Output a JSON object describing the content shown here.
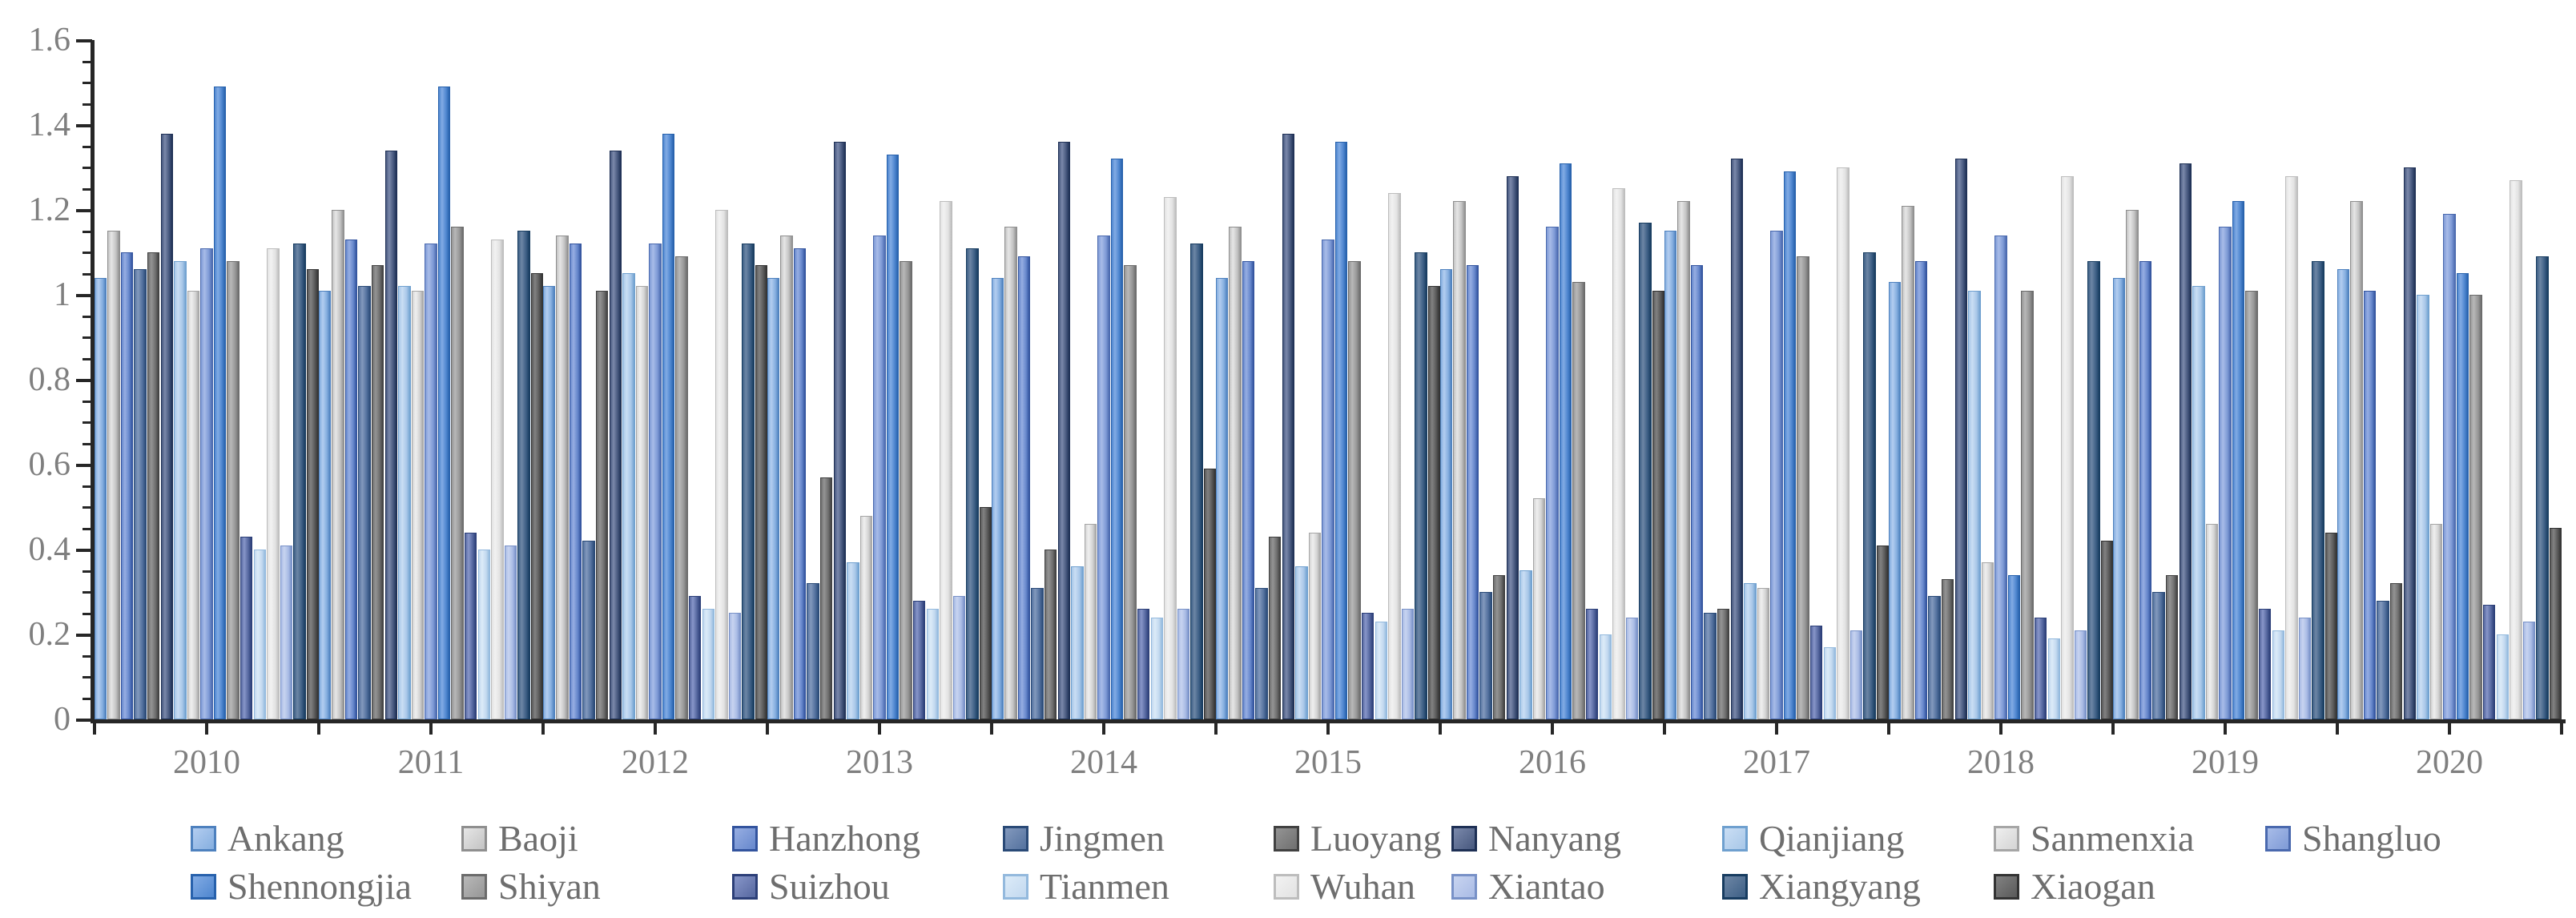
{
  "chart_data": {
    "type": "bar",
    "title": "",
    "xlabel": "",
    "ylabel": "",
    "categories": [
      "2010",
      "2011",
      "2012",
      "2013",
      "2014",
      "2015",
      "2016",
      "2017",
      "2018",
      "2019",
      "2020"
    ],
    "ylim": [
      0,
      1.6
    ],
    "ytick_interval": 0.2,
    "ytick_minor_interval": 0.05,
    "ytick_labels": [
      "0",
      "0.2",
      "0.4",
      "0.6",
      "0.8",
      "1",
      "1.2",
      "1.4",
      "1.6"
    ],
    "grid": false,
    "legend_position": "bottom",
    "legend_rows": [
      [
        "Ankang",
        "Baoji",
        "Hanzhong",
        "Jingmen",
        "Luoyang",
        "Nanyang",
        "Qianjiang",
        "Sanmenxia",
        "Shangluo"
      ],
      [
        "Shennongjia",
        "Shiyan",
        "Suizhou",
        "Tianmen",
        "Wuhan",
        "Xiantao",
        "Xiangyang",
        "Xiaogan"
      ]
    ],
    "axis_color": "#262626",
    "tick_label_color": "#7f7f7f",
    "legend_label_color": "#6e6e6e",
    "series": [
      {
        "name": "Ankang",
        "fill": "#85aedf",
        "light": "#b3cdf0",
        "dark": "#4e81be",
        "values": [
          1.04,
          1.01,
          1.02,
          1.04,
          1.04,
          1.04,
          1.06,
          1.15,
          1.03,
          1.04,
          1.06
        ]
      },
      {
        "name": "Baoji",
        "fill": "#c3c3c3",
        "light": "#e6e6e6",
        "dark": "#8f8f8f",
        "values": [
          1.15,
          1.2,
          1.14,
          1.14,
          1.16,
          1.16,
          1.22,
          1.22,
          1.21,
          1.2,
          1.22
        ]
      },
      {
        "name": "Hanzhong",
        "fill": "#6687cc",
        "light": "#97aee2",
        "dark": "#33549e",
        "values": [
          1.1,
          1.13,
          1.12,
          1.11,
          1.09,
          1.08,
          1.07,
          1.07,
          1.08,
          1.08,
          1.01
        ]
      },
      {
        "name": "Jingmen",
        "fill": "#53719e",
        "light": "#8399bd",
        "dark": "#2a4a77",
        "values": [
          1.06,
          1.02,
          0.42,
          0.32,
          0.31,
          0.31,
          0.3,
          0.25,
          0.29,
          0.3,
          0.28
        ]
      },
      {
        "name": "Luoyang",
        "fill": "#6f6f6f",
        "light": "#949494",
        "dark": "#414141",
        "values": [
          1.1,
          1.07,
          1.01,
          0.57,
          0.4,
          0.43,
          0.34,
          0.26,
          0.33,
          0.34,
          0.32
        ]
      },
      {
        "name": "Nanyang",
        "fill": "#47587e",
        "light": "#7b89ab",
        "dark": "#1e3055",
        "values": [
          1.38,
          1.34,
          1.34,
          1.36,
          1.36,
          1.38,
          1.28,
          1.32,
          1.32,
          1.31,
          1.3
        ]
      },
      {
        "name": "Qianjiang",
        "fill": "#a8c7e8",
        "light": "#cadef4",
        "dark": "#6fa0cf",
        "values": [
          1.08,
          1.02,
          1.05,
          0.37,
          0.36,
          0.36,
          0.35,
          0.32,
          1.01,
          1.02,
          1.0
        ]
      },
      {
        "name": "Sanmenxia",
        "fill": "#d4d4d4",
        "light": "#efefef",
        "dark": "#a6a6a6",
        "values": [
          1.01,
          1.01,
          1.02,
          0.48,
          0.46,
          0.44,
          0.52,
          0.31,
          0.37,
          0.46,
          0.46
        ]
      },
      {
        "name": "Shangluo",
        "fill": "#7e9ad6",
        "light": "#a8bce8",
        "dark": "#4a69ae",
        "values": [
          1.11,
          1.12,
          1.12,
          1.14,
          1.14,
          1.13,
          1.16,
          1.15,
          1.14,
          1.16,
          1.19
        ]
      },
      {
        "name": "Shennongjia",
        "fill": "#4e86cf",
        "light": "#82abe4",
        "dark": "#2761ac",
        "values": [
          1.49,
          1.49,
          1.38,
          1.33,
          1.32,
          1.36,
          1.31,
          1.29,
          0.34,
          1.22,
          1.05
        ]
      },
      {
        "name": "Shiyan",
        "fill": "#969696",
        "light": "#b8b8b8",
        "dark": "#6b6b6b",
        "values": [
          1.08,
          1.16,
          1.09,
          1.08,
          1.07,
          1.08,
          1.03,
          1.09,
          1.01,
          1.01,
          1.0
        ]
      },
      {
        "name": "Suizhou",
        "fill": "#55679f",
        "light": "#8896c9",
        "dark": "#2c3f78",
        "values": [
          0.43,
          0.44,
          0.29,
          0.28,
          0.26,
          0.25,
          0.26,
          0.22,
          0.24,
          0.26,
          0.27
        ]
      },
      {
        "name": "Tianmen",
        "fill": "#c2d8ef",
        "light": "#dcebf8",
        "dark": "#93b9dd",
        "values": [
          0.4,
          0.4,
          0.26,
          0.26,
          0.24,
          0.23,
          0.2,
          0.17,
          0.19,
          0.21,
          0.2
        ]
      },
      {
        "name": "Wuhan",
        "fill": "#e2e2e2",
        "light": "#f2f2f2",
        "dark": "#bdbdbd",
        "values": [
          1.11,
          1.13,
          1.2,
          1.22,
          1.23,
          1.24,
          1.25,
          1.3,
          1.28,
          1.28,
          1.27
        ]
      },
      {
        "name": "Xiantao",
        "fill": "#a9bbe5",
        "light": "#c8d4f0",
        "dark": "#7891c7",
        "values": [
          0.41,
          0.41,
          0.25,
          0.29,
          0.26,
          0.26,
          0.24,
          0.21,
          0.21,
          0.24,
          0.23
        ]
      },
      {
        "name": "Xiangyang",
        "fill": "#3d5f85",
        "light": "#6d86a5",
        "dark": "#173c60",
        "values": [
          1.12,
          1.15,
          1.12,
          1.11,
          1.12,
          1.1,
          1.17,
          1.1,
          1.08,
          1.08,
          1.09
        ]
      },
      {
        "name": "Xiaogan",
        "fill": "#595959",
        "light": "#828282",
        "dark": "#333333",
        "values": [
          1.06,
          1.05,
          1.07,
          0.5,
          0.59,
          1.02,
          1.01,
          0.41,
          0.42,
          0.44,
          0.45
        ]
      }
    ]
  }
}
